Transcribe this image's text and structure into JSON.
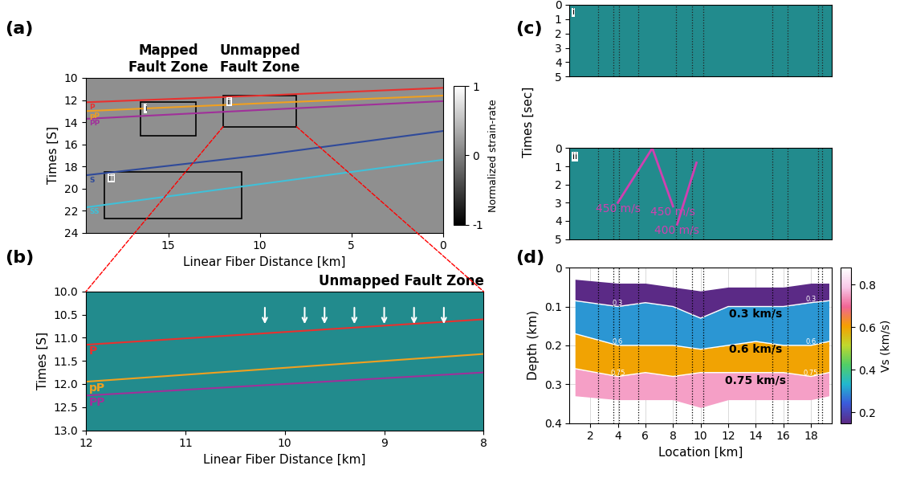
{
  "chart_data": [
    {
      "panel_label": "(a)",
      "type": "seismic_section",
      "xlabel": "Linear Fiber Distance [km]",
      "ylabel": "Times [S]",
      "xlim": [
        19.5,
        0
      ],
      "xticks": [
        15,
        10,
        5,
        0
      ],
      "ylim": [
        24,
        10
      ],
      "yticks": [
        10,
        12,
        14,
        16,
        18,
        20,
        22,
        24
      ],
      "colorbar": {
        "label": "Normalized strain-rate",
        "range": [
          -1,
          1
        ],
        "ticks": [
          1,
          0,
          -1
        ]
      },
      "phases": [
        {
          "name": "P",
          "color": "#e8312f",
          "x": [
            19.5,
            10,
            0
          ],
          "y": [
            12.2,
            11.6,
            10.9
          ]
        },
        {
          "name": "pP",
          "color": "#f0a020",
          "x": [
            19.5,
            10,
            0
          ],
          "y": [
            13.0,
            12.3,
            11.6
          ]
        },
        {
          "name": "PP",
          "color": "#a0309a",
          "x": [
            19.5,
            10,
            0
          ],
          "y": [
            13.7,
            12.9,
            12.1
          ]
        },
        {
          "name": "S",
          "color": "#2f4a9a",
          "x": [
            19.5,
            10,
            0
          ],
          "y": [
            18.8,
            17.0,
            14.8
          ]
        },
        {
          "name": "SS",
          "color": "#40c0d8",
          "x": [
            19.5,
            10,
            0
          ],
          "y": [
            21.7,
            19.6,
            17.4
          ]
        }
      ],
      "boxes": [
        {
          "label": "i",
          "title": "Mapped\nFault Zone",
          "x": [
            16.5,
            13.5
          ],
          "y": [
            12.2,
            15.2
          ]
        },
        {
          "label": "ii",
          "title": "Unmapped\nFault Zone",
          "x": [
            12,
            8
          ],
          "y": [
            11.6,
            14.4
          ]
        },
        {
          "label": "iii",
          "x": [
            18.5,
            11
          ],
          "y": [
            18.5,
            22.7
          ]
        }
      ]
    },
    {
      "panel_label": "(b)",
      "type": "seismic_section",
      "title": "Unmapped Fault Zone",
      "xlabel": "Linear Fiber Distance [km]",
      "ylabel": "Times [S]",
      "xlim": [
        12,
        8
      ],
      "xticks": [
        12,
        11,
        10,
        9,
        8
      ],
      "ylim": [
        13,
        10
      ],
      "yticks": [
        {
          "value": 10,
          "label": "10.0"
        },
        {
          "value": 10.5,
          "label": "10.5"
        },
        {
          "value": 11,
          "label": "11.0"
        },
        {
          "value": 11.5,
          "label": "11.5"
        },
        {
          "value": 12,
          "label": "12.0"
        },
        {
          "value": 12.5,
          "label": "12.5"
        },
        {
          "value": 13,
          "label": "13.0"
        }
      ],
      "phases": [
        {
          "name": "P",
          "color": "#e8312f",
          "x": [
            12,
            8
          ],
          "y": [
            11.15,
            10.6
          ]
        },
        {
          "name": "pP",
          "color": "#f0a020",
          "x": [
            12,
            8
          ],
          "y": [
            11.95,
            11.35
          ]
        },
        {
          "name": "PP",
          "color": "#a0309a",
          "x": [
            12,
            8
          ],
          "y": [
            12.25,
            11.75
          ]
        }
      ],
      "arrows": {
        "x": [
          10.2,
          9.8,
          9.6,
          9.3,
          9.0,
          8.7,
          8.4
        ],
        "time_range": [
          10.3,
          10.75
        ]
      }
    },
    {
      "panel_label": "(c)",
      "type": "seismic_panels",
      "ylabel": "Times [sec]",
      "subpanels": [
        {
          "label": "i",
          "xlim": [
            0.5,
            19.5
          ],
          "ylim": [
            5,
            0
          ],
          "yticks": [
            0,
            1,
            2,
            3,
            4,
            5
          ],
          "tick_labels": "y",
          "dividers": [
            2.6,
            3.7,
            4.1,
            5.5,
            8.2,
            9.4,
            10.2,
            15.2,
            16.3,
            18.5,
            18.8
          ]
        },
        {
          "label": "ii",
          "xlim": [
            0.5,
            19.5
          ],
          "ylim": [
            5,
            0
          ],
          "yticks": [
            0,
            1,
            2,
            3,
            4,
            5
          ],
          "tick_labels": "y",
          "dividers": [
            2.6,
            3.7,
            4.1,
            5.5,
            8.2,
            9.4,
            10.2,
            15.2,
            16.3,
            18.5,
            18.8
          ],
          "velocity_picks": {
            "color": "#d040b0",
            "lines": [
              {
                "label": "450 m/s",
                "x": [
                  4.0,
                  6.5
                ],
                "y": [
                  3.0,
                  0
                ]
              },
              {
                "label": "450 m/s",
                "x": [
                  6.5,
                  8.0
                ],
                "y": [
                  0,
                  3.2
                ]
              },
              {
                "label": "400 m/s",
                "x": [
                  8.3,
                  9.7
                ],
                "y": [
                  4.2,
                  0.8
                ]
              }
            ]
          }
        }
      ]
    },
    {
      "panel_label": "(d)",
      "type": "velocity_section",
      "grid": true,
      "xlabel": "Location [km]",
      "ylabel": "Depth (km)",
      "xlim": [
        0.5,
        19.5
      ],
      "xticks": [
        2,
        4,
        6,
        8,
        10,
        12,
        14,
        16,
        18
      ],
      "ylim": [
        0.4,
        0
      ],
      "yticks": [
        0,
        0.1,
        0.2,
        0.3,
        0.4
      ],
      "colorbar": {
        "label": "Vs (km/s)",
        "range": [
          0.15,
          0.88
        ],
        "ticks": [
          0.2,
          0.4,
          0.6,
          0.8
        ]
      },
      "dividers": [
        2.6,
        3.7,
        4.1,
        5.5,
        8.2,
        9.4,
        10.2,
        15.2,
        16.3,
        18.5,
        18.8
      ],
      "x": [
        0.9,
        4,
        6,
        8,
        10,
        12,
        14,
        16,
        18,
        19.3
      ],
      "surface_depth": [
        0.03,
        0.04,
        0.04,
        0.05,
        0.06,
        0.05,
        0.05,
        0.05,
        0.04,
        0.04
      ],
      "bottom_depth": [
        0.33,
        0.34,
        0.34,
        0.34,
        0.36,
        0.34,
        0.34,
        0.34,
        0.34,
        0.33
      ],
      "contours": [
        {
          "value": 0.3,
          "label": "0.3 km/s",
          "depth": [
            0.085,
            0.1,
            0.09,
            0.1,
            0.13,
            0.1,
            0.1,
            0.1,
            0.09,
            0.085
          ]
        },
        {
          "value": 0.6,
          "label": "0.6 km/s",
          "depth": [
            0.17,
            0.2,
            0.2,
            0.2,
            0.21,
            0.2,
            0.19,
            0.2,
            0.2,
            0.19
          ]
        },
        {
          "value": 0.75,
          "label": "0.75 km/s",
          "depth": [
            0.26,
            0.28,
            0.27,
            0.28,
            0.27,
            0.27,
            0.27,
            0.27,
            0.28,
            0.27
          ]
        }
      ]
    }
  ]
}
